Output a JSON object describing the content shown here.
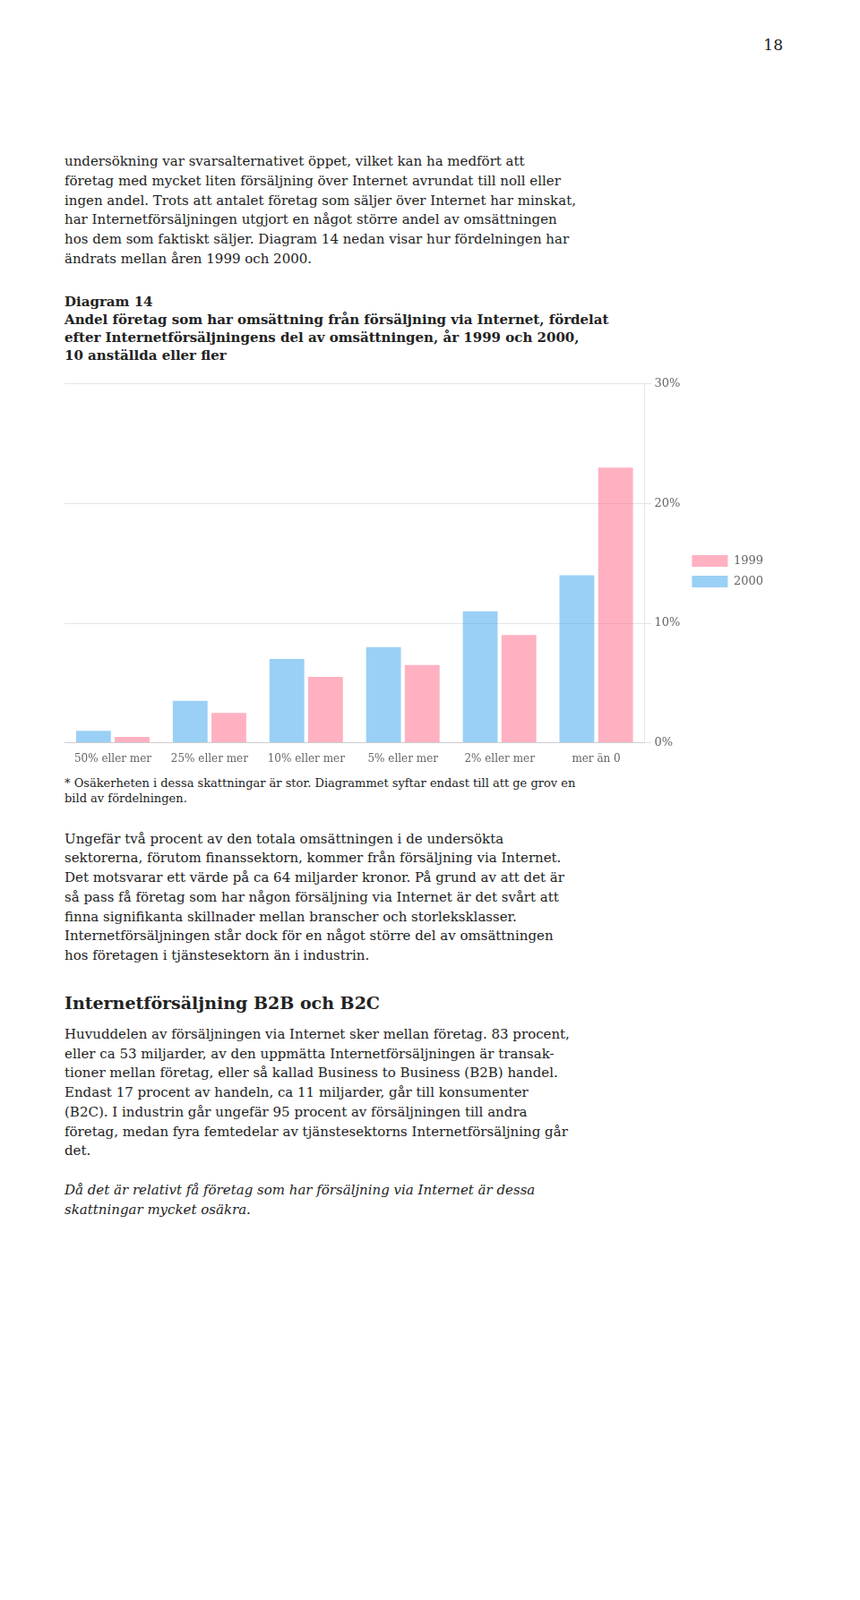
{
  "page_number": "18",
  "body_text_1": "undersökning var svarsalternativet öppet, vilket kan ha medfört att\nföretag med mycket liten försäljning över Internet avrundat till noll eller\ningen andel. Trots att antalet företag som säljer över Internet har minskat,\nhar Internetförsäljningen utgjort en något större andel av omsättningen\nhos dem som faktiskt säljer. Diagram 14 nedan visar hur fördelningen har\nändrats mellan åren 1999 och 2000.",
  "chart_data": {
    "type": "bar",
    "title": "Diagram 14",
    "subtitle": "Andel företag som har omsättning från försäljning via Internet, fördelat\nefter Internetförsäljningens del av omsättningen, år 1999 och 2000,\n10 anställda eller fler",
    "categories": [
      "50% eller mer",
      "25% eller mer",
      "10% eller mer",
      "5% eller mer",
      "2% eller mer",
      "mer än 0"
    ],
    "series": [
      {
        "name": "2000",
        "values": [
          1.0,
          3.5,
          7.0,
          8.0,
          11.0,
          14.0
        ]
      },
      {
        "name": "1999",
        "values": [
          0.5,
          2.5,
          5.5,
          6.5,
          9.0,
          23.0
        ]
      }
    ],
    "ylim": [
      0,
      30
    ],
    "yticks": [
      {
        "value": 0,
        "label": "0%"
      },
      {
        "value": 10,
        "label": "10%"
      },
      {
        "value": 20,
        "label": "20%"
      },
      {
        "value": 30,
        "label": "30%"
      }
    ],
    "grid": true,
    "legend": "right",
    "footnote": "* Osäkerheten i dessa skattningar är stor. Diagrammet syftar endast till att ge grov en\nbild av fördelningen."
  },
  "body_text_2": "Ungefär två procent av den totala omsättningen i de undersökta\nsektorerna, förutom finanssektorn, kommer från försäljning via Internet.\nDet motsvarar ett värde på ca 64 miljarder kronor. På grund av att det är\nså pass få företag som har någon försäljning via Internet är det svårt att\nfinna signifikanta skillnader mellan branscher och storleksklasser.\nInternetförsäljningen står dock för en något större del av omsättningen\nhos företagen i tjänstesektorn än i industrin.",
  "heading_b2b": "Internetförsäljning B2B och B2C",
  "body_text_3a": "Huvuddelen av försäljningen via Internet sker mellan företag. 83 procent,\neller ca 53 miljarder, av den uppmätta Internetförsäljningen är transak-\ntioner mellan företag, eller så kallad Business to Business (B2B) handel.\nEndast 17 procent av handeln, ca 11 miljarder, går till konsumenter\n(B2C). I industrin går ungefär 95 procent av försäljningen till andra\nföretag, medan fyra femtedelar av tjänstesektorns Internetförsäljning går\ndet. ",
  "body_text_3b_italic": "Då det är relativt få företag som har försäljning via Internet är dessa\nskattningar mycket osäkra."
}
